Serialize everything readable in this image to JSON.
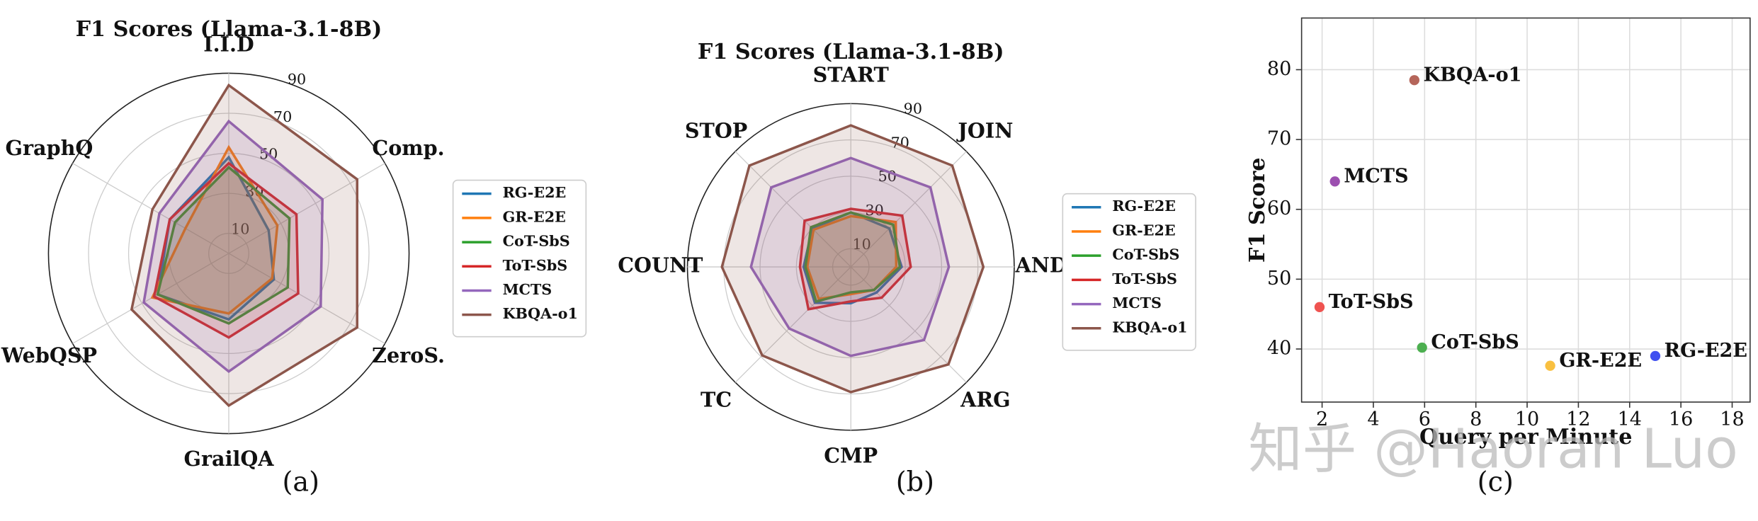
{
  "chart_data": [
    {
      "type": "radar",
      "title": "F1 Scores (Llama-3.1-8B)",
      "caption": "(a)",
      "categories": [
        "I.I.D",
        "Comp.",
        "ZeroS.",
        "GrailQA",
        "WebQSP",
        "GraphQ"
      ],
      "rlim": [
        0,
        90
      ],
      "rticks": [
        10,
        30,
        50,
        70,
        90
      ],
      "series": [
        {
          "name": "RG-E2E",
          "color": "#1f77b4",
          "values": [
            48,
            23,
            26,
            33,
            41,
            34
          ]
        },
        {
          "name": "GR-E2E",
          "color": "#ff7f0e",
          "values": [
            53,
            28,
            25,
            30,
            44,
            25
          ]
        },
        {
          "name": "CoT-SbS",
          "color": "#2ca02c",
          "values": [
            43,
            35,
            34,
            35,
            41,
            31
          ]
        },
        {
          "name": "ToT-SbS",
          "color": "#d62728",
          "values": [
            45,
            39,
            40,
            42,
            43,
            34
          ]
        },
        {
          "name": "MCTS",
          "color": "#9467bd",
          "values": [
            66,
            54,
            53,
            59,
            49,
            40
          ]
        },
        {
          "name": "KBQA-o1",
          "color": "#8c564b",
          "values": [
            84,
            74,
            74,
            76,
            56,
            44
          ]
        }
      ]
    },
    {
      "type": "radar",
      "title": "F1 Scores (Llama-3.1-8B)",
      "caption": "(b)",
      "categories": [
        "START",
        "JOIN",
        "AND",
        "ARG",
        "CMP",
        "TC",
        "COUNT",
        "STOP"
      ],
      "rlim": [
        0,
        90
      ],
      "rticks": [
        10,
        30,
        50,
        70,
        90
      ],
      "series": [
        {
          "name": "RG-E2E",
          "color": "#1f77b4",
          "values": [
            30,
            30,
            28,
            20,
            20,
            28,
            26,
            30
          ]
        },
        {
          "name": "GR-E2E",
          "color": "#ff7f0e",
          "values": [
            28,
            35,
            25,
            18,
            15,
            25,
            24,
            29
          ]
        },
        {
          "name": "CoT-SbS",
          "color": "#2ca02c",
          "values": [
            30,
            33,
            27,
            18,
            14,
            27,
            25,
            31
          ]
        },
        {
          "name": "ToT-SbS",
          "color": "#d62728",
          "values": [
            32,
            40,
            33,
            24,
            19,
            33,
            28,
            36
          ]
        },
        {
          "name": "MCTS",
          "color": "#9467bd",
          "values": [
            60,
            62,
            54,
            57,
            49,
            48,
            55,
            62
          ]
        },
        {
          "name": "KBQA-o1",
          "color": "#8c564b",
          "values": [
            78,
            79,
            73,
            76,
            69,
            69,
            71,
            79
          ]
        }
      ]
    },
    {
      "type": "scatter",
      "caption": "(c)",
      "x_label": "Query per Minute",
      "y_label": "F1 Score",
      "xlim": [
        1.2,
        18.7
      ],
      "ylim": [
        32.4,
        87.4
      ],
      "xticks": [
        2,
        4,
        6,
        8,
        10,
        12,
        14,
        16,
        18
      ],
      "yticks": [
        40,
        50,
        60,
        70,
        80
      ],
      "grid": true,
      "series": [
        {
          "name": "KBQA-o1",
          "color": "#b5655a",
          "x": [
            5.6
          ],
          "values": [
            78.5
          ]
        },
        {
          "name": "MCTS",
          "color": "#9c4fb0",
          "x": [
            2.5
          ],
          "values": [
            64
          ]
        },
        {
          "name": "ToT-SbS",
          "color": "#ef5350",
          "x": [
            1.9
          ],
          "values": [
            46
          ]
        },
        {
          "name": "CoT-SbS",
          "color": "#4caf50",
          "x": [
            5.9
          ],
          "values": [
            40.2
          ]
        },
        {
          "name": "GR-E2E",
          "color": "#f9c040",
          "x": [
            10.9
          ],
          "values": [
            37.6
          ]
        },
        {
          "name": "RG-E2E",
          "color": "#4050f0",
          "x": [
            15
          ],
          "values": [
            39
          ]
        }
      ]
    }
  ],
  "watermark": "知乎 @Haoran Luo"
}
